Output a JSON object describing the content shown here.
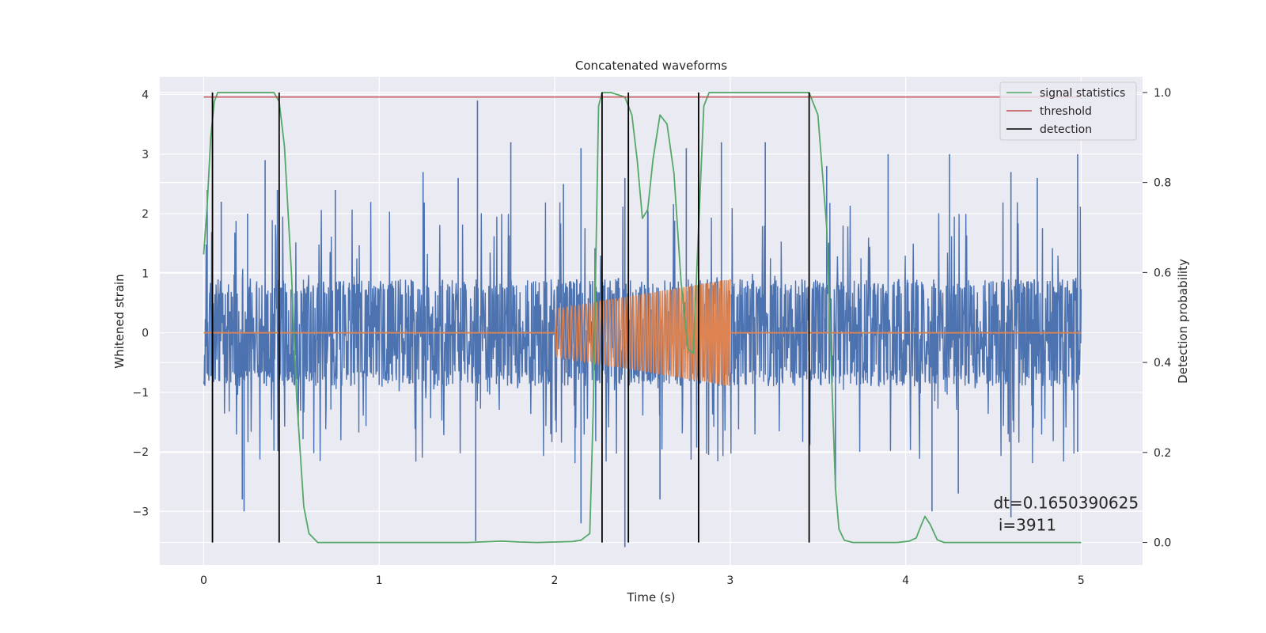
{
  "chart_data": {
    "type": "line",
    "title": "Concatenated waveforms",
    "xlabel": "Time (s)",
    "ylabel": "Whitened strain",
    "ylabel_right": "Detection probability",
    "xlim": [
      -0.25,
      5.35
    ],
    "ylim": [
      -3.9,
      4.3
    ],
    "ylim_right": [
      -0.05,
      1.035
    ],
    "xticks": [
      0,
      1,
      2,
      3,
      4,
      5
    ],
    "yticks": [
      -3,
      -2,
      -1,
      0,
      1,
      2,
      3,
      4
    ],
    "yticks_right": [
      0.0,
      0.2,
      0.4,
      0.6,
      0.8,
      1.0
    ],
    "grid": true,
    "legend_position": "top-right",
    "series": [
      {
        "name": "",
        "axis": "left",
        "kind": "noise",
        "color": "#4c72b0",
        "x_range": [
          0,
          5
        ],
        "core_amplitude": 0.9,
        "spike_peaks": [
          {
            "x": 0.02,
            "y": 2.4
          },
          {
            "x": 0.1,
            "y": 2.2
          },
          {
            "x": 0.25,
            "y": 2.0
          },
          {
            "x": 0.35,
            "y": 2.9
          },
          {
            "x": 0.42,
            "y": 2.4
          },
          {
            "x": 0.75,
            "y": 2.4
          },
          {
            "x": 1.25,
            "y": 2.7
          },
          {
            "x": 1.45,
            "y": 2.6
          },
          {
            "x": 1.56,
            "y": 3.9
          },
          {
            "x": 1.75,
            "y": 3.2
          },
          {
            "x": 2.05,
            "y": 2.5
          },
          {
            "x": 2.15,
            "y": 3.1
          },
          {
            "x": 2.4,
            "y": 2.6
          },
          {
            "x": 2.75,
            "y": 3.1
          },
          {
            "x": 2.95,
            "y": 3.2
          },
          {
            "x": 3.2,
            "y": 3.2
          },
          {
            "x": 3.45,
            "y": 2.7
          },
          {
            "x": 3.55,
            "y": 2.8
          },
          {
            "x": 3.9,
            "y": 3.0
          },
          {
            "x": 4.25,
            "y": 3.0
          },
          {
            "x": 4.6,
            "y": 2.7
          },
          {
            "x": 4.75,
            "y": 2.6
          },
          {
            "x": 4.98,
            "y": 3.0
          }
        ],
        "trough_peaks": [
          {
            "x": 0.22,
            "y": -2.2
          },
          {
            "x": 0.22,
            "y": -2.8
          },
          {
            "x": 0.23,
            "y": -3.0
          },
          {
            "x": 1.55,
            "y": -3.5
          },
          {
            "x": 2.15,
            "y": -3.2
          },
          {
            "x": 2.4,
            "y": -3.6
          },
          {
            "x": 2.6,
            "y": -2.8
          },
          {
            "x": 3.6,
            "y": -2.6
          },
          {
            "x": 4.15,
            "y": -3.0
          },
          {
            "x": 4.3,
            "y": -2.7
          },
          {
            "x": 4.6,
            "y": -3.1
          },
          {
            "x": 4.98,
            "y": -2.0
          }
        ]
      },
      {
        "name": "",
        "axis": "left",
        "kind": "chirp",
        "color": "#dd8452",
        "zero_segments": [
          [
            0,
            2.0
          ],
          [
            3.0,
            5.0
          ]
        ],
        "chirp_start": 2.0,
        "chirp_end": 3.0,
        "amplitude_start": 0.4,
        "amplitude_end": 0.9,
        "freq_start_hz": 40,
        "freq_end_hz": 90
      },
      {
        "name": "signal statistics",
        "axis": "right",
        "color": "#55a868",
        "x": [
          0.0,
          0.02,
          0.04,
          0.06,
          0.08,
          0.1,
          0.15,
          0.3,
          0.4,
          0.43,
          0.46,
          0.5,
          0.53,
          0.57,
          0.6,
          0.65,
          0.8,
          1.0,
          1.5,
          1.7,
          1.8,
          1.9,
          2.0,
          2.1,
          2.15,
          2.2,
          2.22,
          2.25,
          2.27,
          2.32,
          2.4,
          2.44,
          2.47,
          2.5,
          2.53,
          2.56,
          2.6,
          2.64,
          2.68,
          2.72,
          2.76,
          2.79,
          2.82,
          2.85,
          2.88,
          2.95,
          3.1,
          3.3,
          3.45,
          3.5,
          3.55,
          3.58,
          3.6,
          3.62,
          3.65,
          3.7,
          3.8,
          3.95,
          4.02,
          4.06,
          4.09,
          4.11,
          4.14,
          4.18,
          4.22,
          4.3,
          5.0
        ],
        "y": [
          0.64,
          0.75,
          0.9,
          0.98,
          1.0,
          1.0,
          1.0,
          1.0,
          1.0,
          0.98,
          0.88,
          0.6,
          0.32,
          0.08,
          0.02,
          0.0,
          0.0,
          0.0,
          0.0,
          0.003,
          0.001,
          0.0,
          0.001,
          0.002,
          0.005,
          0.02,
          0.3,
          0.97,
          1.0,
          1.0,
          0.99,
          0.95,
          0.85,
          0.72,
          0.74,
          0.85,
          0.95,
          0.93,
          0.82,
          0.58,
          0.43,
          0.42,
          0.7,
          0.97,
          1.0,
          1.0,
          1.0,
          1.0,
          1.0,
          0.95,
          0.7,
          0.35,
          0.12,
          0.03,
          0.005,
          0.0,
          0.0,
          0.0,
          0.003,
          0.01,
          0.04,
          0.058,
          0.04,
          0.006,
          0.0,
          0.0,
          0.0
        ]
      },
      {
        "name": "threshold",
        "axis": "right",
        "color": "#c44e52",
        "x": [
          0,
          5
        ],
        "y": [
          0.99,
          0.99
        ]
      },
      {
        "name": "detection",
        "axis": "right",
        "color": "#000000",
        "kind": "vlines",
        "x": [
          0.05,
          0.43,
          2.27,
          2.42,
          2.82,
          3.45
        ],
        "y_range": [
          0.0,
          1.0
        ]
      }
    ],
    "annotation": {
      "line1": "dt=0.1650390625",
      "line2": " i=3911",
      "x": 4.5,
      "y": -2.95
    },
    "colors": {
      "background": "#eaeaf2",
      "grid": "#ffffff",
      "text": "#262626"
    }
  }
}
